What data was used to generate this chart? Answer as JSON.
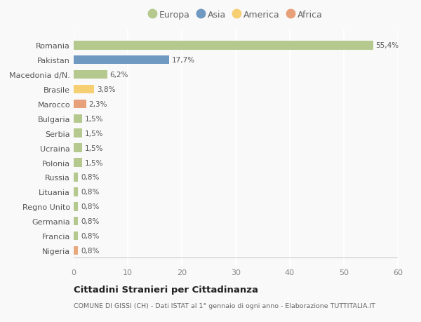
{
  "categories": [
    "Nigeria",
    "Francia",
    "Germania",
    "Regno Unito",
    "Lituania",
    "Russia",
    "Polonia",
    "Ucraina",
    "Serbia",
    "Bulgaria",
    "Marocco",
    "Brasile",
    "Macedonia d/N.",
    "Pakistan",
    "Romania"
  ],
  "values": [
    0.8,
    0.8,
    0.8,
    0.8,
    0.8,
    0.8,
    1.5,
    1.5,
    1.5,
    1.5,
    2.3,
    3.8,
    6.2,
    17.7,
    55.4
  ],
  "labels": [
    "0,8%",
    "0,8%",
    "0,8%",
    "0,8%",
    "0,8%",
    "0,8%",
    "1,5%",
    "1,5%",
    "1,5%",
    "1,5%",
    "2,3%",
    "3,8%",
    "6,2%",
    "17,7%",
    "55,4%"
  ],
  "colors": [
    "#e8a87c",
    "#b5c98e",
    "#b5c98e",
    "#b5c98e",
    "#b5c98e",
    "#b5c98e",
    "#b5c98e",
    "#b5c98e",
    "#b5c98e",
    "#b5c98e",
    "#e8a07a",
    "#f5cf72",
    "#b5c98e",
    "#7099c2",
    "#b5c98e"
  ],
  "legend_labels": [
    "Europa",
    "Asia",
    "America",
    "Africa"
  ],
  "legend_colors": [
    "#b5c98e",
    "#7099c2",
    "#f5cf72",
    "#e8a07a"
  ],
  "title": "Cittadini Stranieri per Cittadinanza",
  "subtitle": "COMUNE DI GISSI (CH) - Dati ISTAT al 1° gennaio di ogni anno - Elaborazione TUTTITALIA.IT",
  "xlim": [
    0,
    60
  ],
  "xticks": [
    0,
    10,
    20,
    30,
    40,
    50,
    60
  ],
  "background_color": "#f9f9f9",
  "grid_color": "#ffffff",
  "bar_height": 0.6
}
